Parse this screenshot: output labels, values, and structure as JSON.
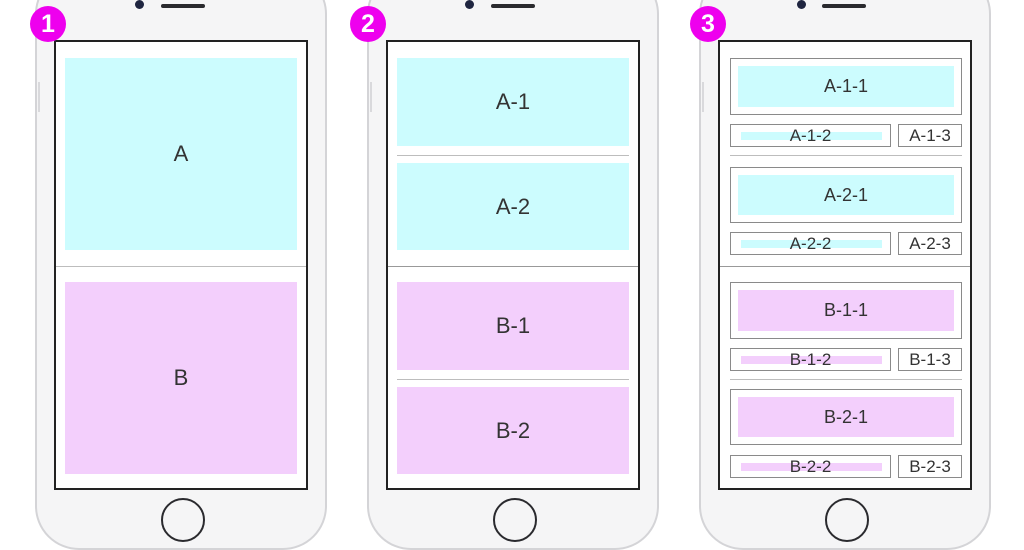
{
  "badges": [
    "1",
    "2",
    "3"
  ],
  "phone1": {
    "a": "A",
    "b": "B"
  },
  "phone2": {
    "a1": "A-1",
    "a2": "A-2",
    "b1": "B-1",
    "b2": "B-2"
  },
  "phone3": {
    "a11": "A-1-1",
    "a12": "A-1-2",
    "a13": "A-1-3",
    "a21": "A-2-1",
    "a22": "A-2-2",
    "a23": "A-2-3",
    "b11": "B-1-1",
    "b12": "B-1-2",
    "b13": "B-1-3",
    "b21": "B-2-1",
    "b22": "B-2-2",
    "b23": "B-2-3"
  },
  "colors": {
    "a_fill": "#ccfcfe",
    "b_fill": "#f3cffc",
    "badge": "#ee00ee"
  }
}
